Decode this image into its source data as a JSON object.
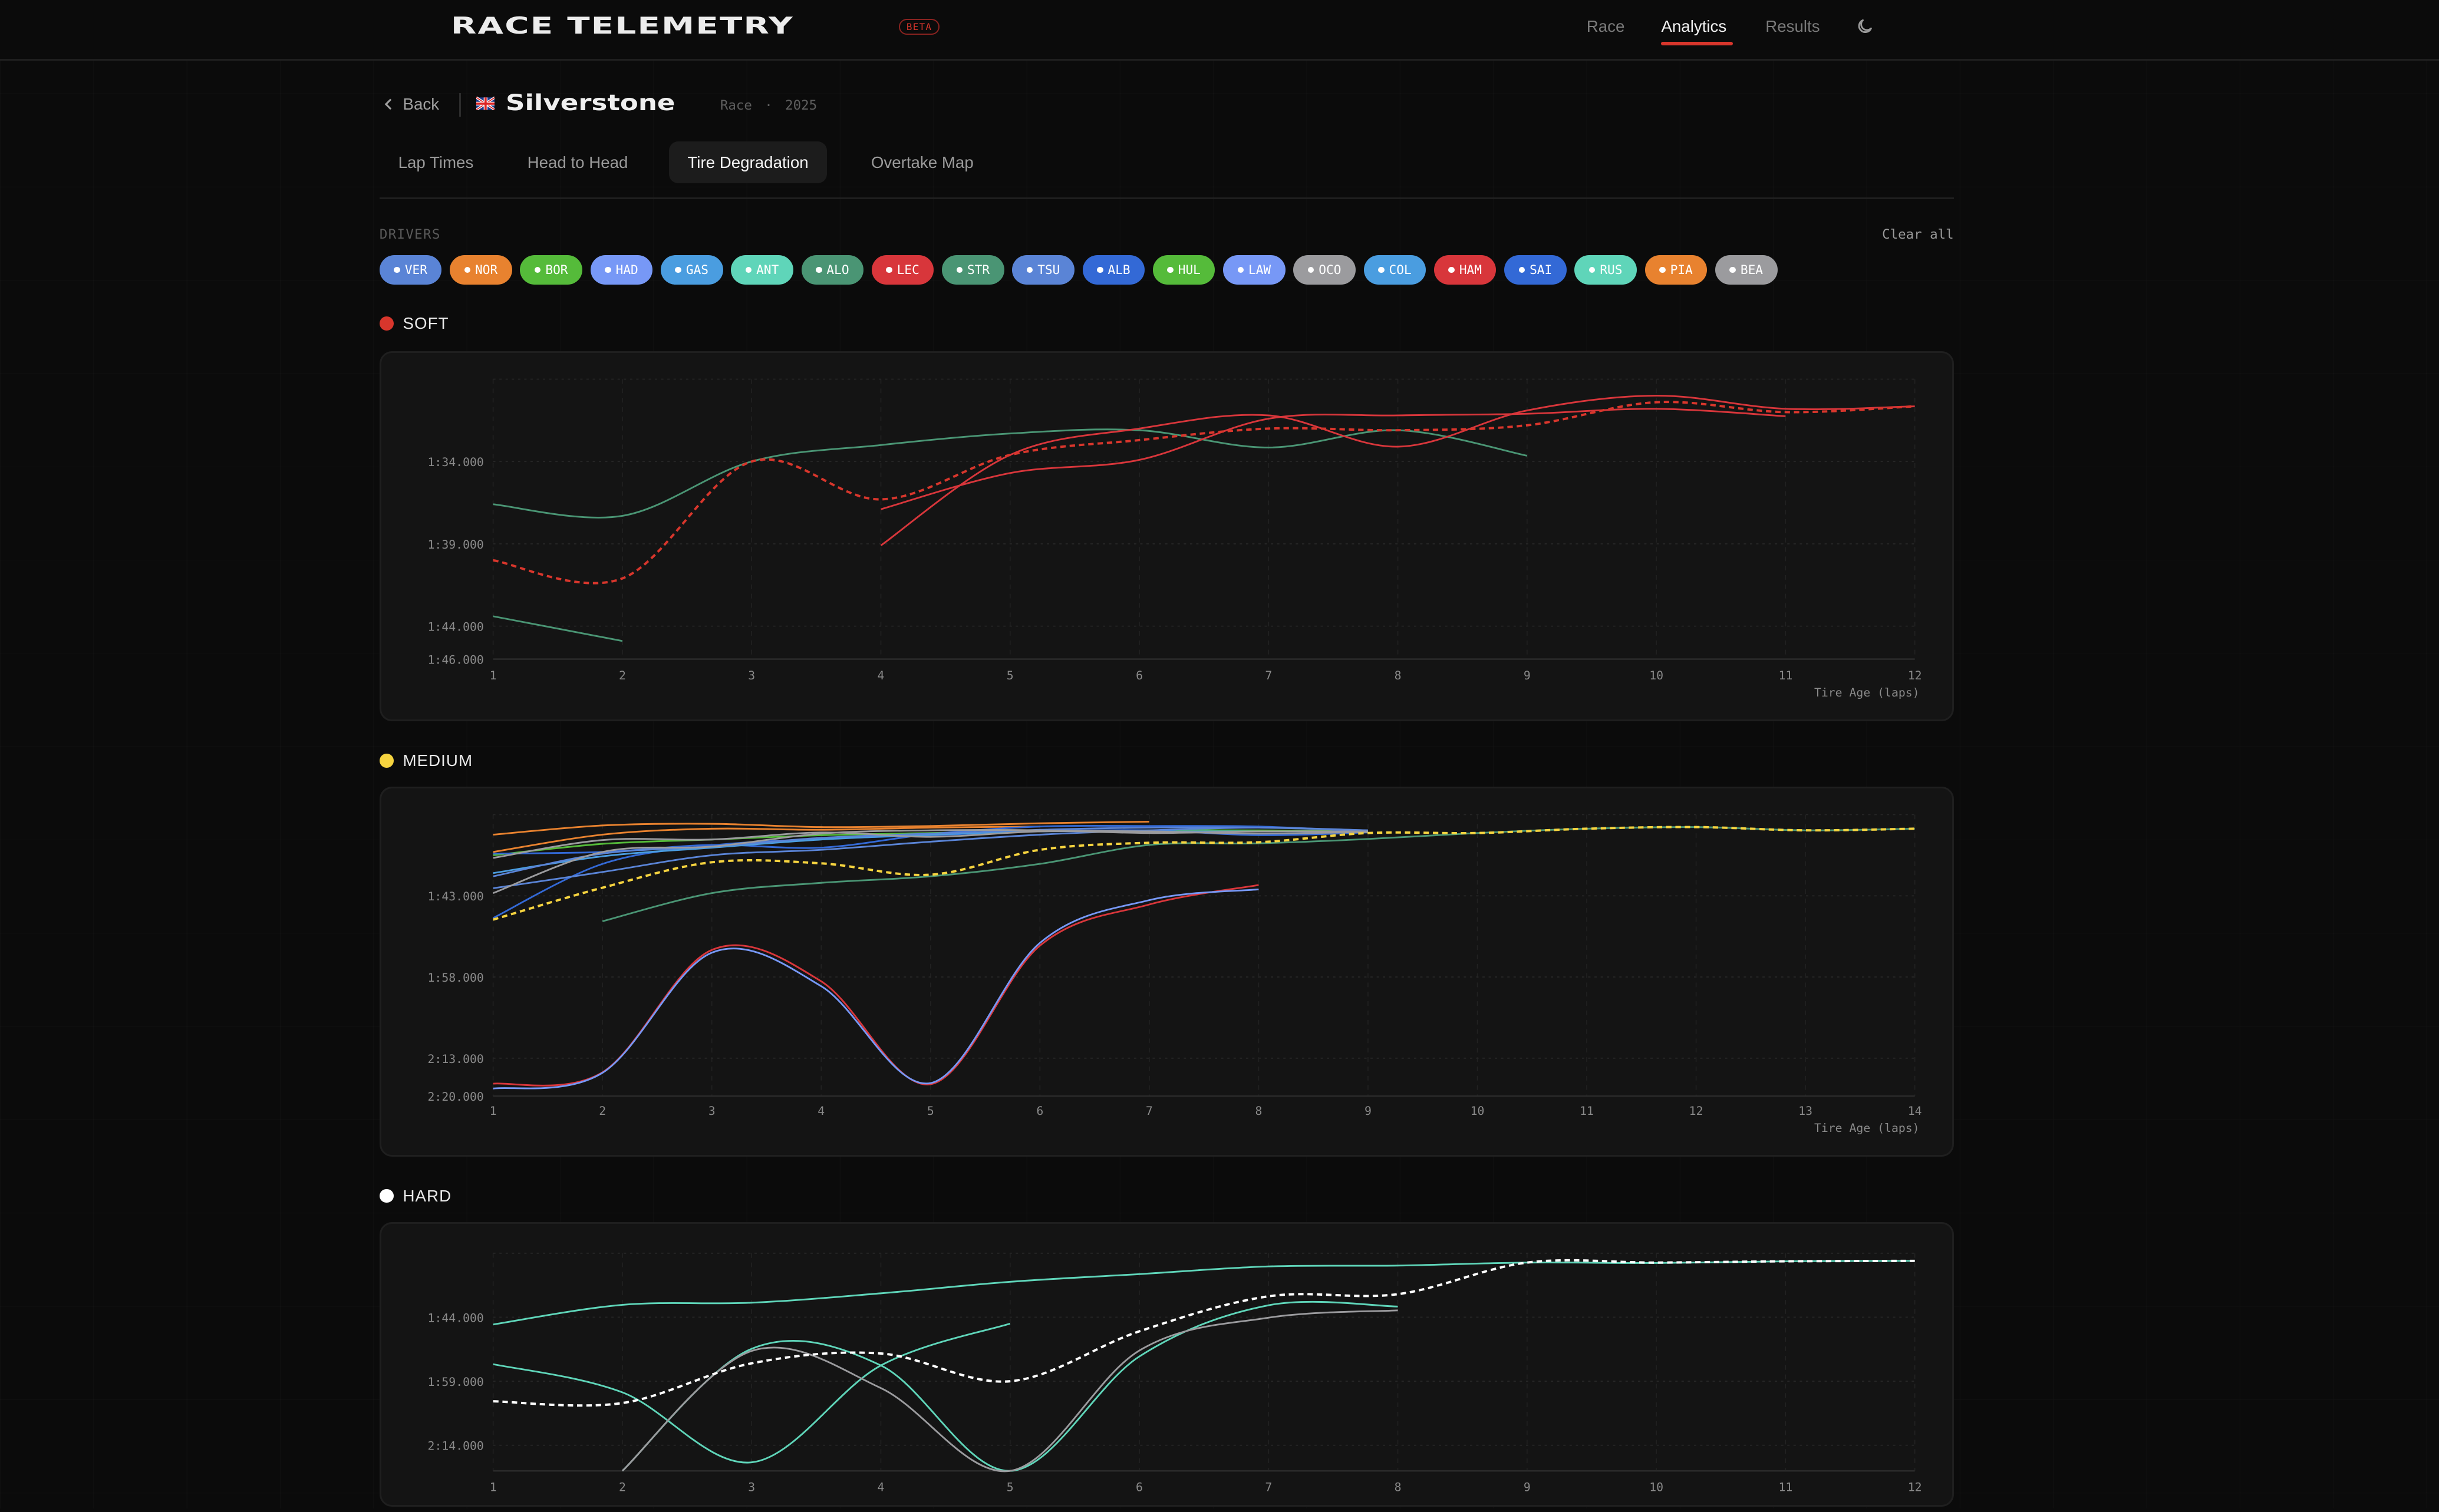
{
  "header": {
    "logo": "RACE TELEMETRY",
    "badge": "BETA",
    "nav": [
      {
        "label": "Race",
        "active": false
      },
      {
        "label": "Analytics",
        "active": true
      },
      {
        "label": "Results",
        "active": false
      }
    ],
    "theme_icon": "moon-icon",
    "accent": "#d8362c"
  },
  "page": {
    "back_label": "Back",
    "flag_icon": "uk-flag-icon",
    "track": "Silverstone",
    "session": "Race",
    "separator": "·",
    "year": "2025",
    "tabs": [
      {
        "label": "Lap Times",
        "active": false
      },
      {
        "label": "Head to Head",
        "active": false
      },
      {
        "label": "Tire Degradation",
        "active": true
      },
      {
        "label": "Overtake Map",
        "active": false
      }
    ]
  },
  "drivers": {
    "label": "DRIVERS",
    "clear_label": "Clear all",
    "chips": [
      {
        "code": "VER",
        "color": "#5a84d6"
      },
      {
        "code": "NOR",
        "color": "#e8822f"
      },
      {
        "code": "BOR",
        "color": "#55bb3a"
      },
      {
        "code": "HAD",
        "color": "#7798f6"
      },
      {
        "code": "GAS",
        "color": "#4a9de0"
      },
      {
        "code": "ANT",
        "color": "#5fd5b9"
      },
      {
        "code": "ALO",
        "color": "#4a9574"
      },
      {
        "code": "LEC",
        "color": "#d8363b"
      },
      {
        "code": "STR",
        "color": "#4a9574"
      },
      {
        "code": "TSU",
        "color": "#5a84d6"
      },
      {
        "code": "ALB",
        "color": "#3369d6"
      },
      {
        "code": "HUL",
        "color": "#55bb3a"
      },
      {
        "code": "LAW",
        "color": "#7798f6"
      },
      {
        "code": "OCO",
        "color": "#9b9b9e"
      },
      {
        "code": "COL",
        "color": "#4a9de0"
      },
      {
        "code": "HAM",
        "color": "#d8363b"
      },
      {
        "code": "SAI",
        "color": "#3369d6"
      },
      {
        "code": "RUS",
        "color": "#5fd5b9"
      },
      {
        "code": "PIA",
        "color": "#e8822f"
      },
      {
        "code": "BEA",
        "color": "#9b9b9e"
      }
    ]
  },
  "chart_data": [
    {
      "type": "line",
      "title": "SOFT",
      "compound_color": "#d8362c",
      "xlabel": "Tire Age (laps)",
      "xlim": [
        1,
        12
      ],
      "ylim": [
        89,
        106
      ],
      "y_inverted": true,
      "yticks": [
        {
          "value": 94,
          "label": "1:34.000"
        },
        {
          "value": 99,
          "label": "1:39.000"
        },
        {
          "value": 104,
          "label": "1:44.000"
        },
        {
          "value": 106,
          "label": "1:46.000"
        }
      ],
      "grid": true,
      "series": [
        {
          "color": "#4a9574",
          "dashed": false,
          "start_lap": 1,
          "values": [
            96.6,
            97.3,
            94.0,
            93.0,
            92.3,
            92.1,
            93.15,
            92.1,
            93.65
          ]
        },
        {
          "color": "#4a9574",
          "dashed": false,
          "start_lap": 1,
          "values": [
            103.4,
            104.9
          ]
        },
        {
          "color": "#d8363b",
          "dashed": false,
          "start_lap": 4,
          "values": [
            96.9,
            94.7,
            93.9,
            91.4,
            91.2,
            91.1,
            90.8,
            91.25
          ]
        },
        {
          "color": "#d8363b",
          "dashed": false,
          "start_lap": 4,
          "values": [
            99.1,
            93.6,
            92.0,
            91.2,
            93.1,
            90.9,
            90.0,
            90.8,
            90.65
          ]
        },
        {
          "color": "#d8362c",
          "dashed": true,
          "start_lap": 1,
          "values": [
            100.0,
            101.1,
            94.0,
            96.3,
            93.6,
            92.7,
            92.0,
            92.1,
            91.8,
            90.4,
            91.0,
            90.65
          ]
        }
      ]
    },
    {
      "type": "line",
      "title": "MEDIUM",
      "compound_color": "#f5d33f",
      "xlabel": "Tire Age (laps)",
      "xlim": [
        1,
        14
      ],
      "ylim": [
        88,
        140
      ],
      "y_inverted": true,
      "yticks": [
        {
          "value": 103,
          "label": "1:43.000"
        },
        {
          "value": 118,
          "label": "1:58.000"
        },
        {
          "value": 133,
          "label": "2:13.000"
        },
        {
          "value": 140,
          "label": "2:20.000"
        }
      ],
      "grid": true,
      "series": [
        {
          "color": "#e8822f",
          "dashed": false,
          "start_lap": 1,
          "values": [
            91.7,
            90.0,
            89.7,
            90.3,
            90.1,
            89.6,
            89.3
          ]
        },
        {
          "color": "#e8822f",
          "dashed": false,
          "start_lap": 1,
          "values": [
            94.9,
            91.7,
            90.6,
            90.8,
            90.4,
            90.2
          ]
        },
        {
          "color": "#55bb3a",
          "dashed": false,
          "start_lap": 1,
          "values": [
            95.5,
            93.4,
            92.6,
            91.8,
            91.4,
            91.0,
            90.9,
            90.9,
            91.1
          ]
        },
        {
          "color": "#3369d6",
          "dashed": false,
          "start_lap": 1,
          "values": [
            95.2,
            94.9,
            93.6,
            94.1,
            91.6,
            90.2,
            90.1,
            90.2,
            91.1
          ]
        },
        {
          "color": "#3369d6",
          "dashed": false,
          "start_lap": 1,
          "values": [
            107.1,
            97.1,
            93.7,
            92.5,
            91.8,
            91.1,
            90.9,
            91.8,
            91.3
          ]
        },
        {
          "color": "#4a9de0",
          "dashed": false,
          "start_lap": 1,
          "values": [
            98.8,
            95.7,
            94.1,
            92.6,
            91.7,
            91.1,
            91.1,
            91.1,
            91.1
          ]
        },
        {
          "color": "#5a84d6",
          "dashed": false,
          "start_lap": 1,
          "values": [
            101.6,
            98.6,
            95.5,
            94.5,
            93.0,
            91.7,
            90.9,
            90.4,
            90.9
          ]
        },
        {
          "color": "#5a84d6",
          "dashed": false,
          "start_lap": 1,
          "values": [
            99.4,
            95.2,
            93.9,
            92.3,
            91.5,
            90.8,
            90.4,
            90.4,
            90.9
          ]
        },
        {
          "color": "#9b9b9e",
          "dashed": false,
          "start_lap": 1,
          "values": [
            102.5,
            94.9,
            93.9,
            91.5,
            90.9,
            90.9,
            91.4,
            91.1,
            91.1
          ]
        },
        {
          "color": "#9b9b9e",
          "dashed": false,
          "start_lap": 1,
          "values": [
            96.0,
            92.7,
            92.6,
            91.3,
            92.1,
            91.1,
            91.1,
            91.5,
            91.2
          ]
        },
        {
          "color": "#4a9574",
          "dashed": false,
          "start_lap": 2,
          "values": [
            107.7,
            102.5,
            100.6,
            99.4,
            97.1,
            93.6,
            93.3,
            92.5,
            91.4,
            90.6,
            90.3,
            90.9,
            90.6
          ]
        },
        {
          "color": "#d8363b",
          "dashed": false,
          "start_lap": 1,
          "values": [
            137.7,
            135.6,
            113.0,
            118.8,
            137.8,
            112.2,
            104.6,
            101.0
          ]
        },
        {
          "color": "#7798f6",
          "dashed": false,
          "start_lap": 1,
          "values": [
            138.6,
            135.7,
            113.5,
            119.7,
            137.6,
            111.7,
            103.8,
            101.8
          ]
        },
        {
          "color": "#f5d33f",
          "dashed": true,
          "start_lap": 1,
          "values": [
            107.4,
            101.5,
            96.8,
            97.0,
            99.1,
            94.5,
            93.2,
            93.1,
            91.4,
            91.4,
            90.6,
            90.3,
            90.9,
            90.6
          ]
        }
      ]
    },
    {
      "type": "line",
      "title": "HARD",
      "compound_color": "#ffffff",
      "xlabel": "",
      "xlim": [
        1,
        12
      ],
      "ylim": [
        89,
        140
      ],
      "y_inverted": true,
      "yticks": [
        {
          "value": 104,
          "label": "1:44.000"
        },
        {
          "value": 119,
          "label": "1:59.000"
        },
        {
          "value": 134,
          "label": "2:14.000"
        }
      ],
      "grid": true,
      "series": [
        {
          "color": "#5fd5b9",
          "dashed": false,
          "start_lap": 1,
          "values": [
            105.7,
            101.1,
            100.6,
            98.4,
            95.7,
            93.9,
            92.1,
            91.9,
            91.2,
            91.3,
            90.9,
            90.8
          ]
        },
        {
          "color": "#5fd5b9",
          "dashed": false,
          "start_lap": 1,
          "values": [
            115.0,
            121.6,
            138.0,
            115.3,
            105.5
          ]
        },
        {
          "color": "#5fd5b9",
          "dashed": false,
          "start_lap": 2,
          "values": [
            140.0,
            111.4,
            115.3,
            140.0,
            113.2,
            101.2,
            101.5
          ]
        },
        {
          "color": "#9b9b9e",
          "dashed": false,
          "start_lap": 2,
          "values": [
            140.0,
            111.9,
            120.6,
            140.0,
            111.8,
            104.1,
            102.4
          ]
        },
        {
          "color": "#ffffff",
          "dashed": true,
          "start_lap": 1,
          "values": [
            123.7,
            124.1,
            114.8,
            112.5,
            119.0,
            107.3,
            99.1,
            98.6,
            91.2,
            91.2,
            90.9,
            90.8
          ]
        }
      ]
    }
  ]
}
